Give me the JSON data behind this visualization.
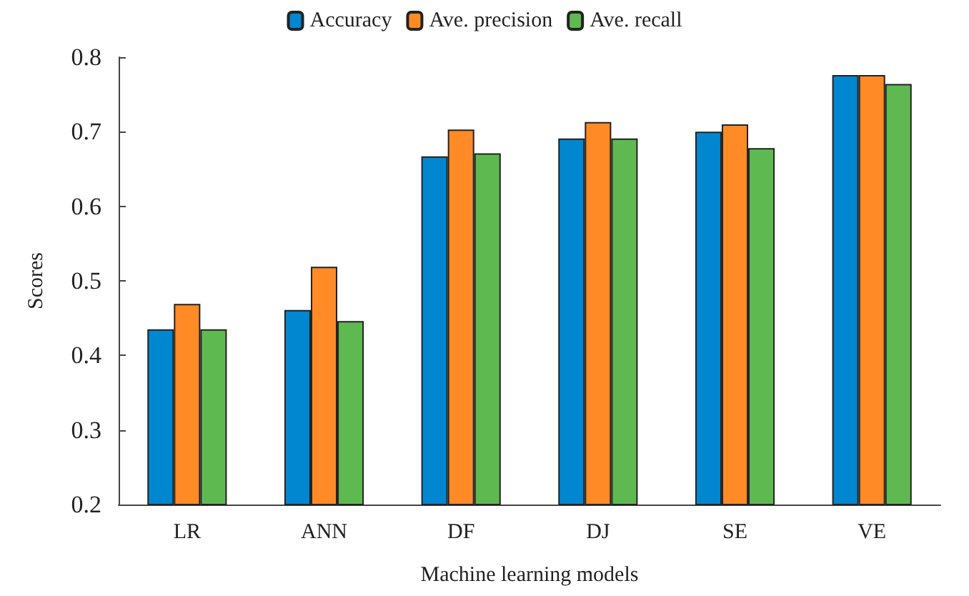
{
  "chart_data": {
    "type": "bar",
    "xlabel": "Machine learning models",
    "ylabel": "Scores",
    "categories": [
      "LR",
      "ANN",
      "DF",
      "DJ",
      "SE",
      "VE"
    ],
    "series": [
      {
        "name": "Accuracy",
        "color": "#0087d0",
        "values": [
          0.435,
          0.461,
          0.667,
          0.691,
          0.7,
          0.776
        ]
      },
      {
        "name": "Ave. precision",
        "color": "#ff8a26",
        "values": [
          0.469,
          0.519,
          0.703,
          0.713,
          0.71,
          0.776
        ]
      },
      {
        "name": "Ave. recall",
        "color": "#5fb951",
        "values": [
          0.435,
          0.446,
          0.671,
          0.691,
          0.678,
          0.764
        ]
      }
    ],
    "ylim": [
      0.2,
      0.8
    ],
    "yticks": [
      0.2,
      0.3,
      0.4,
      0.5,
      0.6,
      0.7,
      0.8
    ],
    "grid": false,
    "legend": "top"
  }
}
